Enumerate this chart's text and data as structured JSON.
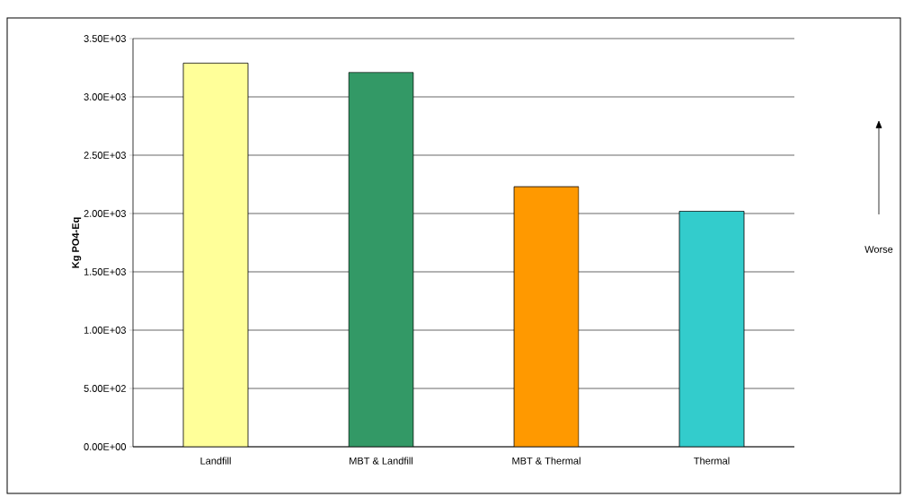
{
  "chart_data": {
    "type": "bar",
    "ylabel": "Kg PO4-Eq",
    "categories": [
      "Landfill",
      "MBT & Landfill",
      "MBT & Thermal",
      "Thermal"
    ],
    "values": [
      3290,
      3210,
      2230,
      2020
    ],
    "colors": [
      "#ffff99",
      "#339966",
      "#ff9900",
      "#33cccc"
    ],
    "ylim": [
      0,
      3500
    ],
    "yticks": [
      {
        "value": 0,
        "label": "0.00E+00"
      },
      {
        "value": 500,
        "label": "5.00E+02"
      },
      {
        "value": 1000,
        "label": "1.00E+03"
      },
      {
        "value": 1500,
        "label": "1.50E+03"
      },
      {
        "value": 2000,
        "label": "2.00E+03"
      },
      {
        "value": 2500,
        "label": "2.50E+03"
      },
      {
        "value": 3000,
        "label": "3.00E+03"
      },
      {
        "value": 3500,
        "label": "3.50E+03"
      }
    ],
    "grid": "y",
    "annotations": [
      "Worse"
    ]
  }
}
